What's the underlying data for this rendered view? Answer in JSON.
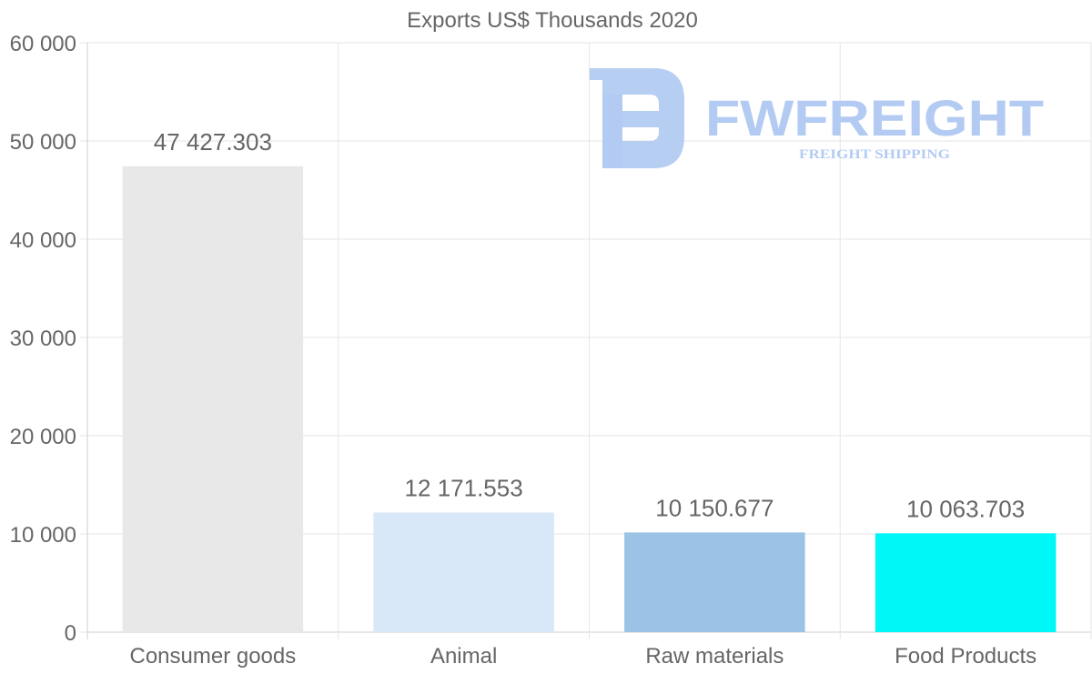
{
  "chart_data": {
    "type": "bar",
    "title": "Exports US$ Thousands 2020",
    "categories": [
      "Consumer goods",
      "Animal",
      "Raw materials",
      "Food Products"
    ],
    "values": [
      47427.303,
      12171.553,
      10150.677,
      10063.703
    ],
    "value_labels": [
      "47 427.303",
      "12 171.553",
      "10 150.677",
      "10 063.703"
    ],
    "colors": [
      "#e8e8e8",
      "#d9e8f9",
      "#9bc3e6",
      "#00f7f7"
    ],
    "ylim": [
      0,
      60000
    ],
    "yticks": [
      0,
      10000,
      20000,
      30000,
      40000,
      50000,
      60000
    ],
    "ytick_labels": [
      "0",
      "10 000",
      "20 000",
      "30 000",
      "40 000",
      "50 000",
      "60 000"
    ],
    "xlabel": "",
    "ylabel": "",
    "grid": true,
    "legend": "none"
  },
  "watermark": {
    "brand": "FWFREIGHT",
    "tagline": "FREIGHT SHIPPING",
    "color": "#b3cbf2"
  }
}
